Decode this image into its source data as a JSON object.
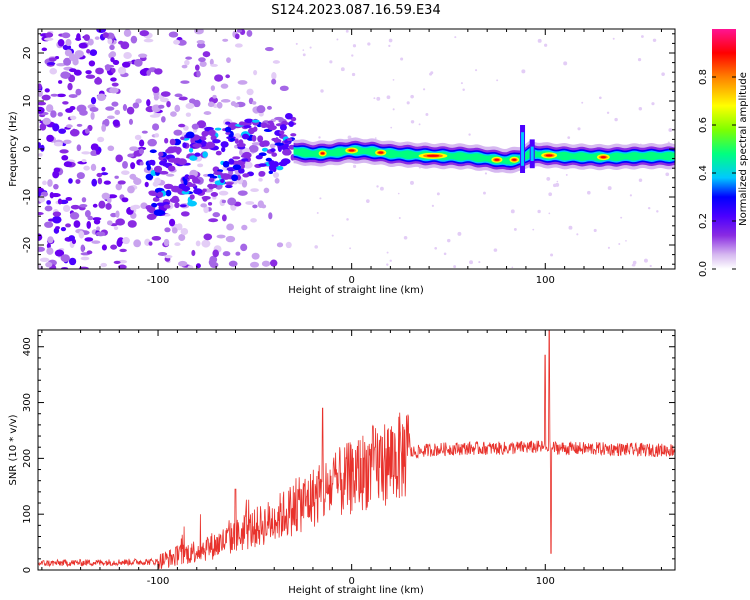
{
  "title": "S124.2023.087.16.59.E34",
  "chart_data": [
    {
      "type": "heatmap",
      "name": "spectrogram",
      "xlabel": "Height of straight line (km)",
      "ylabel": "Frequency (Hz)",
      "xlim": [
        -162,
        167
      ],
      "ylim": [
        -25,
        25
      ],
      "x_ticks": [
        -100,
        0,
        100
      ],
      "y_ticks": [
        -20,
        -10,
        0,
        10,
        20
      ],
      "colorbar": {
        "label": "Normalized spectral amplitude",
        "range": [
          0,
          1
        ],
        "ticks": [
          "0.0",
          "0.2",
          "0.4",
          "0.6",
          "0.8"
        ],
        "colors": [
          "#ffffff",
          "#d6b8f0",
          "#8a2be2",
          "#4b00ff",
          "#0000ff",
          "#00c8ff",
          "#00ff80",
          "#7fff00",
          "#ffff00",
          "#ff8000",
          "#ff0000",
          "#ff1493"
        ]
      },
      "ridge": {
        "description_free": true,
        "x": [
          -30,
          -20,
          -10,
          0,
          10,
          20,
          30,
          40,
          50,
          60,
          70,
          80,
          88,
          92,
          100,
          110,
          120,
          130,
          140,
          150,
          160,
          167
        ],
        "y": [
          -0.5,
          -1.0,
          -0.8,
          -0.3,
          -0.5,
          -1.0,
          -1.2,
          -1.4,
          -1.5,
          -1.6,
          -2.0,
          -2.5,
          -2.0,
          -1.0,
          -1.3,
          -1.5,
          -1.6,
          -1.7,
          -1.6,
          -1.5,
          -1.5,
          -1.5
        ]
      }
    },
    {
      "type": "line",
      "name": "snr",
      "xlabel": "Height of straight line (km)",
      "ylabel": "SNR (10 * v/v)",
      "xlim": [
        -162,
        167
      ],
      "ylim": [
        0,
        430
      ],
      "x_ticks": [
        -100,
        0,
        100
      ],
      "y_ticks": [
        0,
        100,
        200,
        300,
        400
      ],
      "color": "#e8322c",
      "profile": {
        "x": [
          -162,
          -100,
          -90,
          -80,
          -70,
          -60,
          -50,
          -40,
          -30,
          -20,
          -10,
          0,
          10,
          20,
          30,
          40,
          50,
          60,
          80,
          90,
          100,
          110,
          130,
          150,
          167
        ],
        "y": [
          12,
          15,
          25,
          35,
          45,
          60,
          75,
          90,
          110,
          130,
          150,
          165,
          185,
          195,
          210,
          215,
          217,
          218,
          218,
          220,
          220,
          218,
          217,
          215,
          215
        ]
      },
      "spikes": [
        {
          "x": -60,
          "y": 145
        },
        {
          "x": -15,
          "y": 290
        },
        {
          "x": 12,
          "y": 220
        },
        {
          "x": 100,
          "y": 385
        },
        {
          "x": 102,
          "y": 430
        },
        {
          "x": 103,
          "y": 30
        }
      ]
    }
  ]
}
